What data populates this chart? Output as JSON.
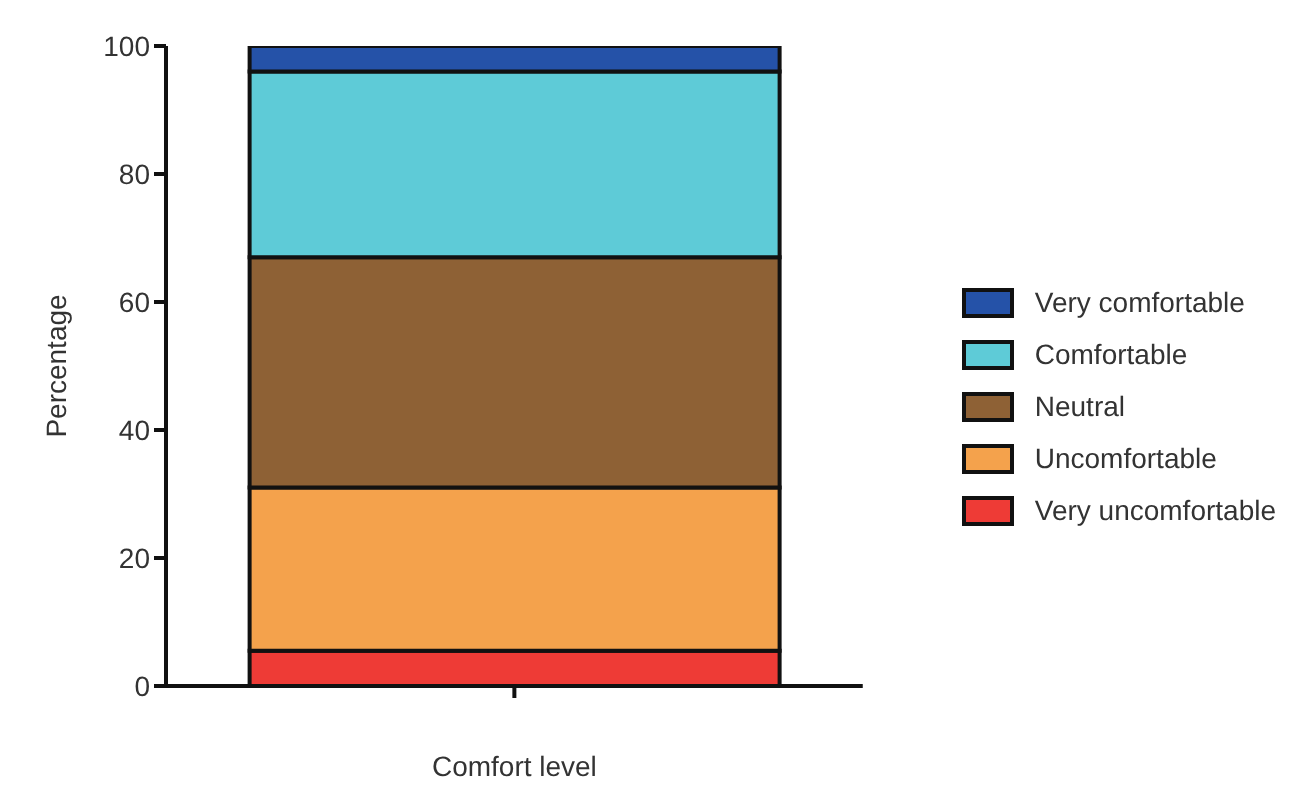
{
  "chart_data": {
    "type": "bar",
    "stacked": true,
    "xlabel": "Comfort level",
    "ylabel": "Percentage",
    "categories": [
      null
    ],
    "ylim": [
      0,
      100
    ],
    "yticks": [
      0,
      20,
      40,
      60,
      80,
      100
    ],
    "grid": false,
    "legend": "right",
    "series": [
      {
        "name": "Very uncomfortable",
        "color": "#ee3b36",
        "values": [
          5.5
        ]
      },
      {
        "name": "Uncomfortable",
        "color": "#f4a24c",
        "values": [
          25.5
        ]
      },
      {
        "name": "Neutral",
        "color": "#8e6135",
        "values": [
          36
        ]
      },
      {
        "name": "Comfortable",
        "color": "#5ecbd7",
        "values": [
          29
        ]
      },
      {
        "name": "Very comfortable",
        "color": "#2552a8",
        "values": [
          4
        ]
      }
    ]
  }
}
